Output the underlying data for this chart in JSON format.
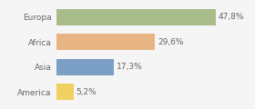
{
  "categories": [
    "Europa",
    "Africa",
    "Asia",
    "America"
  ],
  "values": [
    47.8,
    29.6,
    17.3,
    5.2
  ],
  "labels": [
    "47,8%",
    "29,6%",
    "17,3%",
    "5,2%"
  ],
  "bar_colors": [
    "#a8bc8a",
    "#e8b483",
    "#7b9fc4",
    "#f0d060"
  ],
  "background_color": "#f5f5f5",
  "xlim": [
    0,
    58
  ],
  "bar_height": 0.65,
  "label_fontsize": 6.5,
  "category_fontsize": 6.5,
  "text_color": "#666666"
}
